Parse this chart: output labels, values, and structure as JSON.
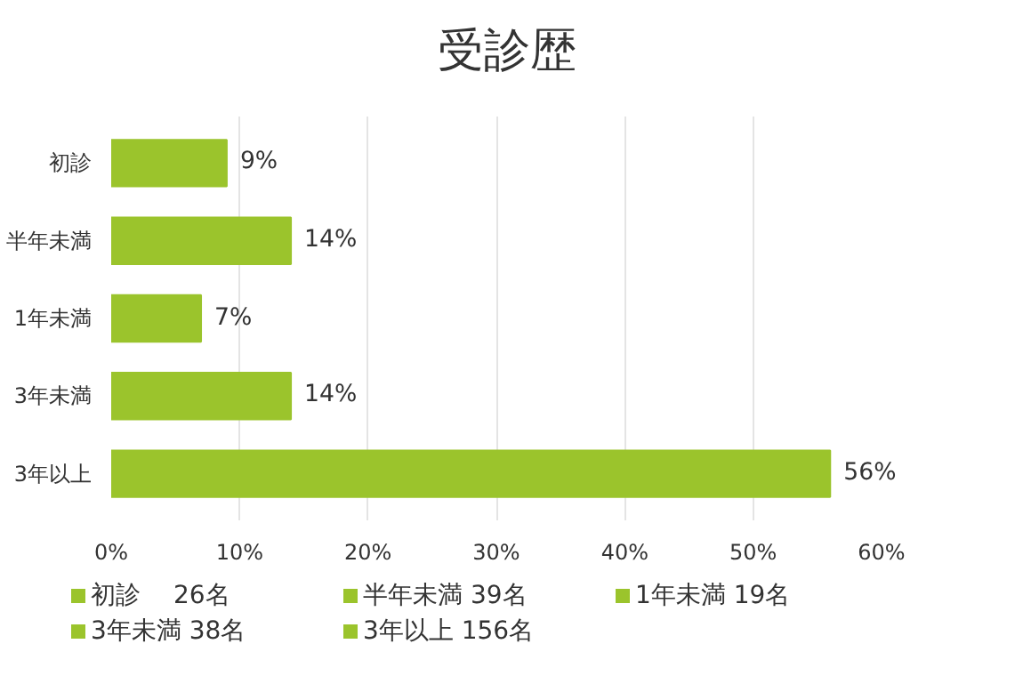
{
  "chart_data": {
    "type": "bar",
    "orientation": "horizontal",
    "title": "受診歴",
    "categories": [
      "初診",
      "半年未満",
      "1年未満",
      "3年未満",
      "3年以上"
    ],
    "values": [
      9,
      14,
      7,
      14,
      56
    ],
    "color": "#9bc42c",
    "value_labels": [
      "9%",
      "14%",
      "7%",
      "14%",
      "56%"
    ],
    "xlim": [
      0,
      60
    ],
    "xticks": [
      {
        "value": 0,
        "label": "0%"
      },
      {
        "value": 10,
        "label": "10%"
      },
      {
        "value": 20,
        "label": "20%"
      },
      {
        "value": 30,
        "label": "30%"
      },
      {
        "value": 40,
        "label": "40%"
      },
      {
        "value": 50,
        "label": "50%"
      },
      {
        "value": 60,
        "label": "60%"
      }
    ],
    "grid": "x",
    "annotations": [
      "初診　 26名",
      "半年未満 39名",
      "1年未満 19名",
      "3年未満 38名",
      "3年以上 156名"
    ]
  }
}
